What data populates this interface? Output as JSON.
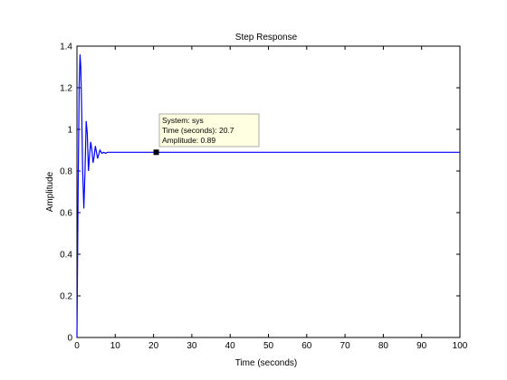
{
  "chart_data": {
    "type": "line",
    "title": "Step Response",
    "xlabel": "Time (seconds)",
    "ylabel": "Amplitude",
    "xlim": [
      0,
      100
    ],
    "ylim": [
      0,
      1.4
    ],
    "xticks": [
      0,
      10,
      20,
      30,
      40,
      50,
      60,
      70,
      80,
      90,
      100
    ],
    "yticks": [
      0,
      0.2,
      0.4,
      0.6,
      0.8,
      1,
      1.2,
      1.4
    ],
    "grid": false,
    "line_color": "#0000ff",
    "series": [
      {
        "x": [
          0,
          0.3,
          0.6,
          0.8,
          1.0,
          1.2,
          1.5,
          1.8,
          2.1,
          2.4,
          2.7,
          3.0,
          3.3,
          3.6,
          3.9,
          4.2,
          4.5,
          4.8,
          5.1,
          5.4,
          5.7,
          6.0,
          6.5,
          7.0,
          7.5,
          8.0,
          9.0,
          10.0,
          12.0,
          15.0,
          20.0,
          30.0,
          50.0,
          70.0,
          100.0
        ],
        "y": [
          0,
          0.72,
          1.22,
          1.36,
          1.3,
          1.12,
          0.8,
          0.62,
          0.8,
          1.04,
          0.98,
          0.8,
          0.88,
          0.94,
          0.9,
          0.84,
          0.87,
          0.92,
          0.89,
          0.86,
          0.88,
          0.9,
          0.885,
          0.89,
          0.885,
          0.89,
          0.89,
          0.89,
          0.89,
          0.89,
          0.89,
          0.89,
          0.89,
          0.89,
          0.89
        ]
      }
    ],
    "datatip": {
      "x": 20.7,
      "y": 0.89,
      "lines": [
        "System: sys",
        "Time (seconds): 20.7",
        "Amplitude: 0.89"
      ]
    }
  }
}
